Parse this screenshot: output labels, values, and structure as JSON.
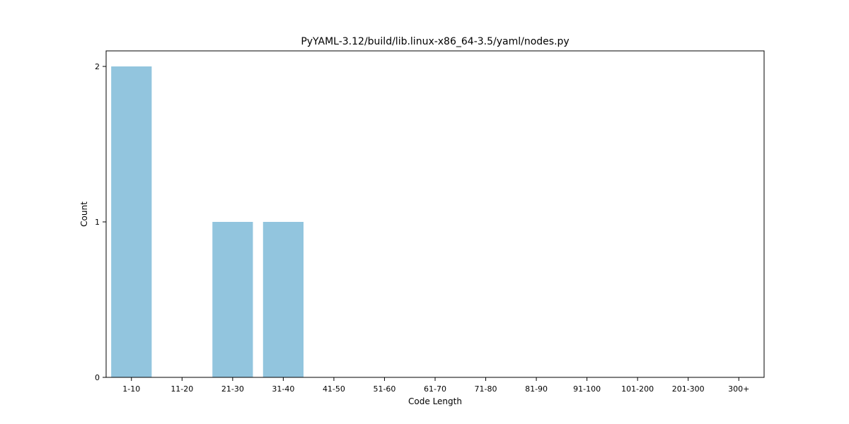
{
  "chart_data": {
    "type": "bar",
    "title": "PyYAML-3.12/build/lib.linux-x86_64-3.5/yaml/nodes.py",
    "xlabel": "Code Length",
    "ylabel": "Count",
    "categories": [
      "1-10",
      "11-20",
      "21-30",
      "31-40",
      "41-50",
      "51-60",
      "61-70",
      "71-80",
      "81-90",
      "91-100",
      "101-200",
      "201-300",
      "300+"
    ],
    "values": [
      2,
      0,
      1,
      1,
      0,
      0,
      0,
      0,
      0,
      0,
      0,
      0,
      0
    ],
    "ylim": [
      0,
      2.1
    ],
    "yticks": [
      0,
      1,
      2
    ],
    "grid": false,
    "bar_color": "#92c5de"
  }
}
